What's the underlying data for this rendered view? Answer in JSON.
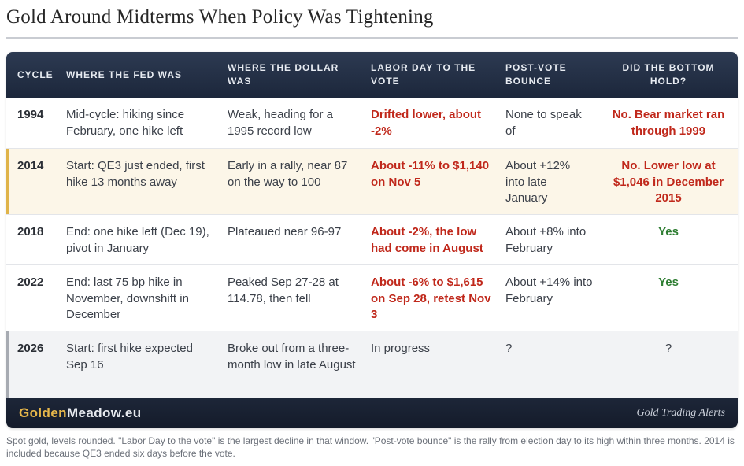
{
  "title": "Gold Around Midterms When Policy Was Tightening",
  "headers": {
    "cycle": "CYCLE",
    "fed": "WHERE THE FED WAS",
    "dollar": "WHERE THE DOLLAR WAS",
    "labor": "LABOR DAY TO THE VOTE",
    "bounce": "POST-VOTE BOUNCE",
    "bottom": "DID THE BOTTOM HOLD?"
  },
  "rows": [
    {
      "cycle": "1994",
      "fed": "Mid-cycle: hiking since February, one hike left",
      "dollar": "Weak, heading for a 1995 record low",
      "labor": "Drifted lower, about -2%",
      "bounce": "None to speak of",
      "bottom": "No. Bear market ran through 1999"
    },
    {
      "cycle": "2014",
      "fed": "Start: QE3 just ended, first hike 13 months away",
      "dollar": "Early in a rally, near 87 on the way to 100",
      "labor": "About -11% to $1,140 on Nov 5",
      "bounce": "About +12% into late January",
      "bottom": "No. Lower low at $1,046 in December 2015"
    },
    {
      "cycle": "2018",
      "fed": "End: one hike left (Dec 19), pivot in January",
      "dollar": "Plateaued near 96-97",
      "labor": "About -2%, the low had come in August",
      "bounce": "About +8% into February",
      "bottom": "Yes"
    },
    {
      "cycle": "2022",
      "fed": "End: last 75 bp hike in November, downshift in December",
      "dollar": "Peaked Sep 27-28 at 114.78, then fell",
      "labor": "About -6% to $1,615 on Sep 28, retest Nov 3",
      "bounce": "About +14% into February",
      "bottom": "Yes"
    },
    {
      "cycle": "2026",
      "fed": "Start: first hike expected Sep 16",
      "dollar": "Broke out from a three-month low in late August",
      "labor": "In progress",
      "bounce": "?",
      "bottom": "?"
    }
  ],
  "footer": {
    "brand_part1": "Golden",
    "brand_part2": "Meadow.eu",
    "tagline": "Gold Trading Alerts"
  },
  "note": "Spot gold, levels rounded. \"Labor Day to the vote\" is the largest decline in that window. \"Post-vote bounce\" is the rally from election day to its high within three months. 2014 is included because QE3 ended six days before the vote.",
  "colors": {
    "header_bg": "#1f2a3f",
    "highlight_bg": "#fcf6e8",
    "highlight_bar": "#e0b44a",
    "negative": "#c0281b",
    "positive": "#2e7d32",
    "brand_gold": "#e6b64a"
  }
}
